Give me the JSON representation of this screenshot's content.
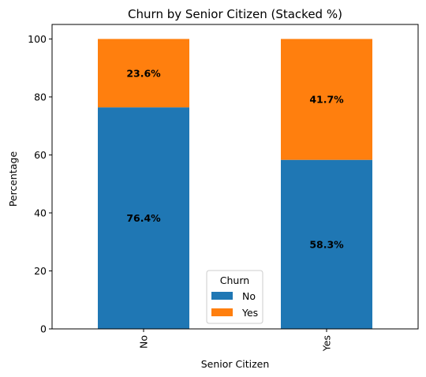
{
  "chart_data": {
    "type": "bar",
    "stacked": true,
    "title": "Churn by Senior Citizen (Stacked %)",
    "xlabel": "Senior Citizen",
    "ylabel": "Percentage",
    "categories": [
      "No",
      "Yes"
    ],
    "ylim": [
      0,
      105
    ],
    "yticks": [
      0,
      20,
      40,
      60,
      80,
      100
    ],
    "grid": false,
    "series": [
      {
        "name": "No",
        "values": [
          76.4,
          58.3
        ],
        "color": "#1f77b4",
        "labels": [
          "76.4%",
          "58.3%"
        ]
      },
      {
        "name": "Yes",
        "values": [
          23.6,
          41.7
        ],
        "color": "#ff7f0e",
        "labels": [
          "23.6%",
          "41.7%"
        ]
      }
    ],
    "legend": {
      "title": "Churn",
      "placement": "bottom-center"
    }
  }
}
